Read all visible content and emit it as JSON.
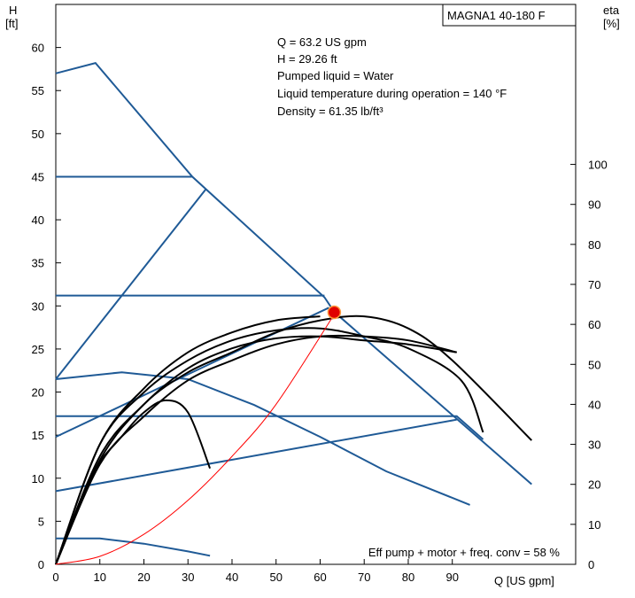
{
  "chart_data": {
    "type": "line",
    "model_label": "MAGNA1 40-180 F",
    "left_axis": {
      "label_line1": "H",
      "label_line2": "[ft]",
      "range": [
        0,
        65
      ],
      "ticks": [
        "0",
        "5",
        "10",
        "15",
        "20",
        "25",
        "30",
        "35",
        "40",
        "45",
        "50",
        "55",
        "60"
      ]
    },
    "right_axis": {
      "label_line1": "eta",
      "label_line2": "[%]",
      "range": [
        0,
        140
      ],
      "ticks": [
        "0",
        "10",
        "20",
        "30",
        "40",
        "50",
        "60",
        "70",
        "80",
        "90",
        "100"
      ]
    },
    "x_axis": {
      "label": "Q [US gpm]",
      "range": [
        0,
        118
      ],
      "ticks": [
        "0",
        "10",
        "20",
        "30",
        "40",
        "50",
        "60",
        "70",
        "80",
        "90"
      ]
    },
    "info_lines": [
      "Q = 63.2 US gpm",
      "H = 29.26 ft",
      "Pumped liquid = Water",
      "Liquid temperature during operation = 140 °F",
      "Density = 61.35 lb/ft³"
    ],
    "efficiency_note": "Eff pump + motor + freq. conv = 58 %",
    "duty_point": {
      "q": 63.2,
      "h": 29.26
    },
    "colors": {
      "head_curves": "#1f5a96",
      "efficiency_curves": "#000000",
      "system_curve": "#ff0000",
      "duty_point": "#e00000"
    },
    "head_curves": [
      {
        "points": [
          [
            0,
            57
          ],
          [
            9,
            58.2
          ],
          [
            31,
            45
          ],
          [
            61,
            31
          ],
          [
            63.2,
            29.3
          ],
          [
            108,
            9.3
          ]
        ]
      },
      {
        "points": [
          [
            0,
            45
          ],
          [
            31,
            45
          ]
        ]
      },
      {
        "points": [
          [
            0,
            31.2
          ],
          [
            61,
            31.2
          ]
        ]
      },
      {
        "points": [
          [
            0,
            21.5
          ],
          [
            34,
            43.5
          ]
        ]
      },
      {
        "points": [
          [
            0,
            14.8
          ],
          [
            62,
            29.8
          ]
        ]
      },
      {
        "points": [
          [
            0,
            17.2
          ],
          [
            91,
            17.2
          ],
          [
            97,
            14.5
          ]
        ]
      },
      {
        "points": [
          [
            0,
            8.5
          ],
          [
            91,
            16.8
          ]
        ]
      },
      {
        "points": [
          [
            0,
            21.5
          ],
          [
            15,
            22.3
          ],
          [
            30,
            21.5
          ],
          [
            45,
            18.5
          ],
          [
            60,
            14.8
          ],
          [
            75,
            10.8
          ],
          [
            94,
            6.9
          ]
        ]
      },
      {
        "points": [
          [
            0,
            3
          ],
          [
            10,
            3
          ],
          [
            20,
            2.4
          ],
          [
            30,
            1.5
          ],
          [
            35,
            1
          ]
        ]
      }
    ],
    "efficiency_curves": [
      {
        "points": [
          [
            0,
            0
          ],
          [
            10,
            26
          ],
          [
            20,
            40
          ],
          [
            30,
            48
          ],
          [
            40,
            53
          ],
          [
            50,
            58
          ],
          [
            60,
            61
          ],
          [
            70,
            62
          ],
          [
            80,
            59
          ],
          [
            90,
            51
          ],
          [
            108,
            31
          ]
        ]
      },
      {
        "points": [
          [
            0,
            0
          ],
          [
            10,
            30
          ],
          [
            20,
            43
          ],
          [
            30,
            51
          ],
          [
            40,
            56
          ],
          [
            50,
            58.5
          ],
          [
            60,
            59
          ],
          [
            70,
            57
          ],
          [
            80,
            54
          ],
          [
            92,
            46
          ],
          [
            97,
            33
          ]
        ]
      },
      {
        "points": [
          [
            0,
            0
          ],
          [
            10,
            27
          ],
          [
            20,
            40
          ],
          [
            30,
            49
          ],
          [
            40,
            54
          ],
          [
            50,
            56.5
          ],
          [
            60,
            57
          ],
          [
            70,
            56
          ],
          [
            80,
            55
          ],
          [
            91,
            53
          ]
        ]
      },
      {
        "points": [
          [
            0,
            0
          ],
          [
            10,
            25
          ],
          [
            20,
            37
          ],
          [
            30,
            46
          ],
          [
            40,
            51
          ],
          [
            50,
            55
          ],
          [
            60,
            57
          ],
          [
            70,
            57
          ],
          [
            80,
            56
          ],
          [
            91,
            53
          ]
        ]
      },
      {
        "points": [
          [
            0,
            0
          ],
          [
            8,
            22
          ],
          [
            15,
            32
          ],
          [
            20,
            38
          ],
          [
            25,
            41
          ],
          [
            30,
            38
          ],
          [
            35,
            24
          ]
        ]
      },
      {
        "points": [
          [
            0,
            0
          ],
          [
            10,
            30
          ],
          [
            20,
            44
          ],
          [
            30,
            53
          ],
          [
            40,
            58
          ],
          [
            50,
            61
          ],
          [
            60,
            62
          ]
        ]
      }
    ],
    "system_curve": {
      "points": [
        [
          0,
          0
        ],
        [
          10,
          2
        ],
        [
          20,
          7.5
        ],
        [
          30,
          16
        ],
        [
          40,
          27
        ],
        [
          50,
          40
        ],
        [
          63.2,
          62.5
        ]
      ]
    }
  }
}
